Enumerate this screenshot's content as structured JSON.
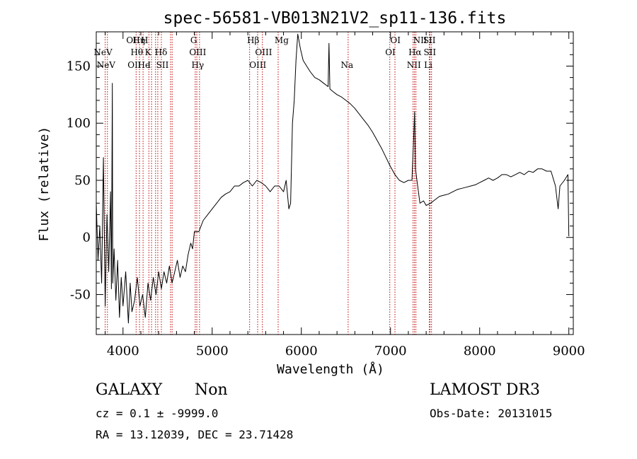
{
  "chart_data": {
    "type": "line",
    "title": "spec-56581-VB013N21V2_sp11-136.fits",
    "xlabel": "Wavelength (Å)",
    "ylabel": "Flux (relative)",
    "xlim": [
      3700,
      9050
    ],
    "ylim": [
      -85,
      180
    ],
    "x_ticks": [
      4000,
      5000,
      6000,
      7000,
      8000,
      9000
    ],
    "y_ticks": [
      -50,
      0,
      50,
      100,
      150
    ],
    "grid": false,
    "series": [
      {
        "points": [
          [
            3700,
            30
          ],
          [
            3720,
            -20
          ],
          [
            3740,
            10
          ],
          [
            3760,
            -40
          ],
          [
            3780,
            70
          ],
          [
            3800,
            -60
          ],
          [
            3820,
            20
          ],
          [
            3840,
            -30
          ],
          [
            3860,
            40
          ],
          [
            3870,
            -45
          ],
          [
            3880,
            135
          ],
          [
            3885,
            -40
          ],
          [
            3900,
            -10
          ],
          [
            3920,
            -55
          ],
          [
            3940,
            -20
          ],
          [
            3960,
            -70
          ],
          [
            3980,
            -35
          ],
          [
            4000,
            -60
          ],
          [
            4030,
            -30
          ],
          [
            4060,
            -75
          ],
          [
            4080,
            -40
          ],
          [
            4100,
            -65
          ],
          [
            4130,
            -55
          ],
          [
            4160,
            -35
          ],
          [
            4190,
            -60
          ],
          [
            4220,
            -50
          ],
          [
            4250,
            -70
          ],
          [
            4280,
            -40
          ],
          [
            4310,
            -55
          ],
          [
            4340,
            -35
          ],
          [
            4370,
            -50
          ],
          [
            4400,
            -30
          ],
          [
            4430,
            -45
          ],
          [
            4460,
            -30
          ],
          [
            4490,
            -40
          ],
          [
            4520,
            -25
          ],
          [
            4550,
            -40
          ],
          [
            4580,
            -30
          ],
          [
            4610,
            -20
          ],
          [
            4640,
            -35
          ],
          [
            4670,
            -25
          ],
          [
            4700,
            -30
          ],
          [
            4730,
            -15
          ],
          [
            4760,
            -5
          ],
          [
            4780,
            -10
          ],
          [
            4800,
            5
          ],
          [
            4850,
            5
          ],
          [
            4900,
            15
          ],
          [
            4950,
            20
          ],
          [
            5000,
            25
          ],
          [
            5050,
            30
          ],
          [
            5100,
            35
          ],
          [
            5150,
            38
          ],
          [
            5200,
            40
          ],
          [
            5250,
            45
          ],
          [
            5300,
            45
          ],
          [
            5350,
            48
          ],
          [
            5400,
            50
          ],
          [
            5450,
            45
          ],
          [
            5500,
            50
          ],
          [
            5550,
            48
          ],
          [
            5600,
            45
          ],
          [
            5650,
            40
          ],
          [
            5700,
            45
          ],
          [
            5750,
            45
          ],
          [
            5800,
            40
          ],
          [
            5830,
            50
          ],
          [
            5860,
            25
          ],
          [
            5880,
            30
          ],
          [
            5900,
            100
          ],
          [
            5920,
            120
          ],
          [
            5940,
            155
          ],
          [
            5960,
            178
          ],
          [
            5990,
            165
          ],
          [
            6020,
            155
          ],
          [
            6060,
            150
          ],
          [
            6100,
            145
          ],
          [
            6150,
            140
          ],
          [
            6200,
            138
          ],
          [
            6250,
            135
          ],
          [
            6300,
            132
          ],
          [
            6310,
            170
          ],
          [
            6320,
            130
          ],
          [
            6350,
            128
          ],
          [
            6400,
            125
          ],
          [
            6450,
            123
          ],
          [
            6500,
            120
          ],
          [
            6550,
            117
          ],
          [
            6600,
            113
          ],
          [
            6650,
            108
          ],
          [
            6700,
            103
          ],
          [
            6750,
            98
          ],
          [
            6800,
            92
          ],
          [
            6850,
            85
          ],
          [
            6900,
            78
          ],
          [
            6950,
            70
          ],
          [
            7000,
            62
          ],
          [
            7050,
            55
          ],
          [
            7100,
            50
          ],
          [
            7150,
            48
          ],
          [
            7200,
            50
          ],
          [
            7240,
            50
          ],
          [
            7260,
            88
          ],
          [
            7270,
            110
          ],
          [
            7280,
            60
          ],
          [
            7300,
            48
          ],
          [
            7330,
            30
          ],
          [
            7370,
            32
          ],
          [
            7400,
            28
          ],
          [
            7450,
            30
          ],
          [
            7500,
            33
          ],
          [
            7550,
            36
          ],
          [
            7600,
            37
          ],
          [
            7650,
            38
          ],
          [
            7700,
            40
          ],
          [
            7750,
            42
          ],
          [
            7800,
            43
          ],
          [
            7850,
            44
          ],
          [
            7900,
            45
          ],
          [
            7950,
            46
          ],
          [
            8000,
            48
          ],
          [
            8050,
            50
          ],
          [
            8100,
            52
          ],
          [
            8150,
            50
          ],
          [
            8200,
            52
          ],
          [
            8250,
            55
          ],
          [
            8300,
            55
          ],
          [
            8350,
            53
          ],
          [
            8400,
            55
          ],
          [
            8450,
            57
          ],
          [
            8500,
            55
          ],
          [
            8550,
            58
          ],
          [
            8600,
            57
          ],
          [
            8650,
            60
          ],
          [
            8700,
            60
          ],
          [
            8750,
            58
          ],
          [
            8800,
            58
          ],
          [
            8850,
            45
          ],
          [
            8880,
            25
          ],
          [
            8900,
            45
          ],
          [
            8950,
            50
          ],
          [
            8990,
            55
          ],
          [
            9000,
            1
          ]
        ]
      }
    ],
    "spectral_lines": [
      {
        "label": "NeV",
        "x": 3776,
        "row": 1
      },
      {
        "label": "NeV",
        "x": 3810,
        "row": 2
      },
      {
        "label": "OII",
        "x": 4113,
        "row": 0
      },
      {
        "label": "Hη",
        "x": 4178,
        "row": 0
      },
      {
        "label": "H",
        "x": 4242,
        "row": 0
      },
      {
        "label": "Hθ",
        "x": 4155,
        "row": 1
      },
      {
        "label": "K",
        "x": 4280,
        "row": 1
      },
      {
        "label": "Hδ",
        "x": 4426,
        "row": 1
      },
      {
        "label": "OII",
        "x": 4128,
        "row": 2
      },
      {
        "label": "He",
        "x": 4234,
        "row": 2
      },
      {
        "label": "I",
        "x": 4293,
        "row": 2
      },
      {
        "label": "SII",
        "x": 4442,
        "row": 2
      },
      {
        "label": "G",
        "x": 4793,
        "row": 0
      },
      {
        "label": "OIII",
        "x": 4838,
        "row": 1
      },
      {
        "label": "Hγ",
        "x": 4838,
        "row": 2
      },
      {
        "label": "Hβ",
        "x": 5460,
        "row": 0
      },
      {
        "label": "Mg",
        "x": 5779,
        "row": 0
      },
      {
        "label": "OIII",
        "x": 5577,
        "row": 1
      },
      {
        "label": "OIII",
        "x": 5512,
        "row": 2
      },
      {
        "label": "Na",
        "x": 6513,
        "row": 2
      },
      {
        "label": "OI",
        "x": 7055,
        "row": 0
      },
      {
        "label": "OI",
        "x": 6998,
        "row": 1
      },
      {
        "label": "NII",
        "x": 7332,
        "row": 0
      },
      {
        "label": "SII",
        "x": 7436,
        "row": 0
      },
      {
        "label": "Hα",
        "x": 7275,
        "row": 1
      },
      {
        "label": "SII",
        "x": 7441,
        "row": 1
      },
      {
        "label": "NII",
        "x": 7262,
        "row": 2
      },
      {
        "label": "Li",
        "x": 7423,
        "row": 2
      }
    ],
    "vlines": [
      3800,
      3825,
      4147,
      4185,
      4225,
      4290,
      4320,
      4365,
      4390,
      4430,
      4533,
      4551,
      4810,
      4828,
      4858,
      5420,
      5510,
      5563,
      5740,
      6525,
      6992,
      7050,
      7253,
      7269,
      7285,
      7435,
      7444,
      7460
    ]
  },
  "footer": {
    "object_class": "GALAXY",
    "subclass": "Non",
    "cz": "cz = 0.1 ± -9999.0",
    "coords": "RA =  13.12039, DEC =  23.71428",
    "survey": "LAMOST DR3",
    "obs_date": "Obs-Date: 20131015"
  }
}
